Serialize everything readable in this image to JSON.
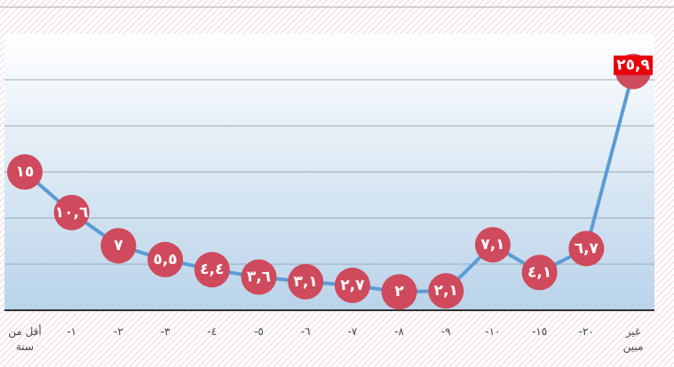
{
  "chart_data": {
    "type": "line",
    "categories": [
      [
        "أقل من",
        "سنة"
      ],
      [
        "-١"
      ],
      [
        "-٢"
      ],
      [
        "-٣"
      ],
      [
        "-٤"
      ],
      [
        "-٥"
      ],
      [
        "-٦"
      ],
      [
        "-٧"
      ],
      [
        "-٨"
      ],
      [
        "-٩"
      ],
      [
        "-١٠"
      ],
      [
        "-١٥"
      ],
      [
        "-٢٠"
      ],
      [
        "غير",
        "مبين"
      ]
    ],
    "values": [
      15,
      10.6,
      7,
      5.5,
      4.4,
      3.6,
      3.1,
      2.7,
      2,
      2.1,
      7.1,
      4.1,
      6.7,
      25.9
    ],
    "value_labels": [
      "١٥",
      "١٠,٦",
      "٧",
      "٥,٥",
      "٤,٤",
      "٣,٦",
      "٣,١",
      "٢,٧",
      "٢",
      "٢,١",
      "٧,١",
      "٤,١",
      "٦,٧",
      "٢٥,٩"
    ],
    "color": "#5b9bd5",
    "marker_color": "#cf4a5c",
    "highlight_color": "#e8000b",
    "ylim": [
      0,
      30
    ],
    "yticks": [
      0,
      5,
      10,
      15,
      20,
      25
    ],
    "grid": true
  }
}
